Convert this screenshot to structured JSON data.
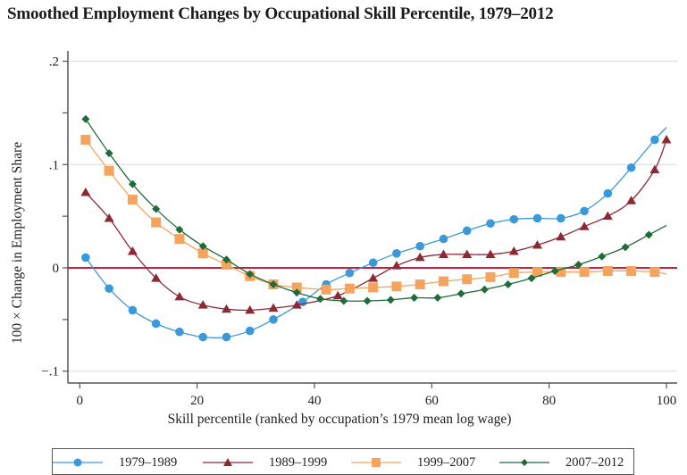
{
  "title": "Smoothed Employment Changes by Occupational Skill Percentile, 1979–2012",
  "chart_data": {
    "type": "line",
    "title": "Smoothed Employment Changes by Occupational Skill Percentile, 1979–2012",
    "xlabel": "Skill percentile (ranked by occupation’s 1979 mean log wage)",
    "ylabel": "100 × Change in Employment Share",
    "xlim": [
      0,
      100
    ],
    "ylim": [
      -0.11,
      0.21
    ],
    "xticks": [
      0,
      20,
      40,
      60,
      80,
      100
    ],
    "xtick_labels": [
      "0",
      "20",
      "40",
      "60",
      "80",
      "100"
    ],
    "yticks": [
      -0.1,
      0,
      0.1,
      0.2
    ],
    "ytick_labels": [
      "−.1",
      "0",
      ".1",
      ".2"
    ],
    "yminor_ticks": [
      -0.05,
      0.05,
      0.15
    ],
    "grid": true,
    "reference_line": 0,
    "legend_position": "bottom",
    "series": [
      {
        "name": "1979–1989",
        "color": "#3a9ad9",
        "marker": "circle",
        "x": [
          1,
          5,
          9,
          13,
          17,
          21,
          25,
          29,
          33,
          38,
          42,
          46,
          50,
          54,
          58,
          62,
          66,
          70,
          74,
          78,
          82,
          86,
          90,
          94,
          98
        ],
        "values": [
          0.01,
          -0.02,
          -0.041,
          -0.054,
          -0.062,
          -0.067,
          -0.067,
          -0.061,
          -0.05,
          -0.033,
          -0.016,
          -0.005,
          0.005,
          0.014,
          0.021,
          0.028,
          0.036,
          0.043,
          0.047,
          0.048,
          0.048,
          0.055,
          0.072,
          0.097,
          0.124
        ],
        "line_end": [
          100,
          0.136
        ]
      },
      {
        "name": "1989–1999",
        "color": "#8b2a35",
        "marker": "triangle",
        "x": [
          1,
          5,
          9,
          13,
          17,
          21,
          25,
          29,
          33,
          37,
          44,
          50,
          54,
          58,
          62,
          66,
          70,
          74,
          78,
          82,
          86,
          90,
          94,
          98,
          100
        ],
        "values": [
          0.073,
          0.048,
          0.016,
          -0.01,
          -0.028,
          -0.036,
          -0.04,
          -0.041,
          -0.039,
          -0.036,
          -0.027,
          -0.01,
          0.002,
          0.01,
          0.013,
          0.013,
          0.013,
          0.016,
          0.022,
          0.03,
          0.04,
          0.05,
          0.065,
          0.095,
          0.124
        ],
        "line_end": [
          100,
          0.124
        ]
      },
      {
        "name": "1999–2007",
        "color": "#f4a45c",
        "marker": "square",
        "x": [
          1,
          5,
          9,
          13,
          17,
          21,
          25,
          29,
          33,
          37,
          42,
          46,
          50,
          54,
          58,
          62,
          66,
          70,
          74,
          78,
          82,
          86,
          90,
          94,
          98
        ],
        "values": [
          0.124,
          0.094,
          0.066,
          0.044,
          0.028,
          0.014,
          0.003,
          -0.008,
          -0.016,
          -0.019,
          -0.021,
          -0.02,
          -0.019,
          -0.018,
          -0.016,
          -0.013,
          -0.011,
          -0.009,
          -0.005,
          -0.004,
          -0.004,
          -0.004,
          -0.003,
          -0.003,
          -0.004
        ],
        "line_end": [
          100,
          -0.006
        ]
      },
      {
        "name": "2007–2012",
        "color": "#1f6b3a",
        "marker": "diamond",
        "x": [
          1,
          5,
          9,
          13,
          17,
          21,
          25,
          29,
          33,
          37,
          41,
          45,
          49,
          53,
          57,
          61,
          65,
          69,
          73,
          77,
          81,
          85,
          89,
          93,
          97
        ],
        "values": [
          0.144,
          0.111,
          0.081,
          0.057,
          0.037,
          0.021,
          0.008,
          -0.006,
          -0.016,
          -0.024,
          -0.03,
          -0.032,
          -0.032,
          -0.031,
          -0.029,
          -0.029,
          -0.025,
          -0.021,
          -0.016,
          -0.01,
          -0.003,
          0.003,
          0.011,
          0.02,
          0.032
        ],
        "line_end": [
          100,
          0.041
        ]
      }
    ]
  }
}
